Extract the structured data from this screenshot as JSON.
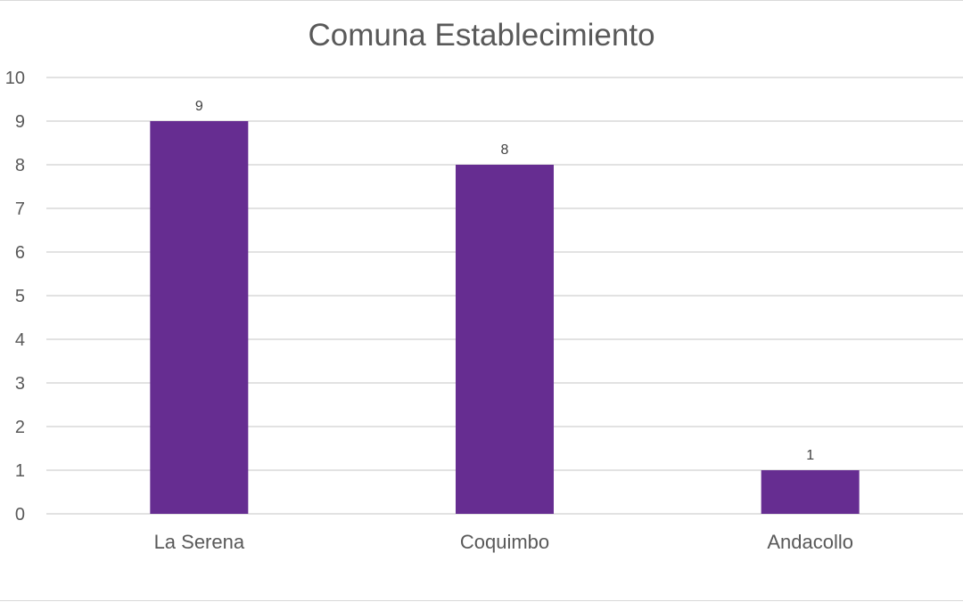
{
  "chart_data": {
    "type": "bar",
    "title": "Comuna Establecimiento",
    "xlabel": "",
    "ylabel": "",
    "categories": [
      "La Serena",
      "Coquimbo",
      "Andacollo"
    ],
    "values": [
      9,
      8,
      1
    ],
    "data_labels": [
      "9",
      "8",
      "1"
    ],
    "ylim": [
      0,
      10
    ],
    "yticks": [
      "0",
      "1",
      "2",
      "3",
      "4",
      "5",
      "6",
      "7",
      "8",
      "9",
      "10"
    ],
    "grid": true,
    "legend": "none",
    "bar_color": "#662d91",
    "grid_color": "#d9d9d9"
  }
}
